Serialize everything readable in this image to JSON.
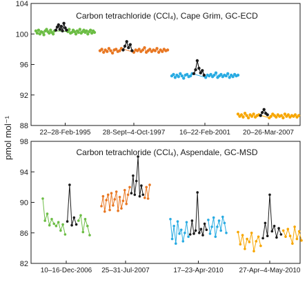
{
  "ylabel": "pmol mol⁻¹",
  "chart_data": [
    {
      "type": "scatter",
      "title": "Carbon tetrachloride (CCl₄), Cape Grim, GC-ECD",
      "ylim": [
        88,
        104
      ],
      "yticks": [
        "88",
        "92",
        "96",
        "100",
        "104"
      ],
      "groups": [
        {
          "label": "22–28-Feb-1995",
          "color": "#6cbd45",
          "event_color": "#1a1a1a",
          "background": [
            100.4,
            100.1,
            100.5,
            100.0,
            100.3,
            100.2,
            99.9,
            100.4,
            100.6,
            100.3,
            100.1,
            100.5,
            100.2,
            100.0,
            100.4,
            100.3,
            100.6,
            100.1,
            100.2,
            100.5,
            100.3,
            100.0,
            100.4,
            100.2,
            100.6,
            100.1,
            100.3,
            100.5,
            100.2,
            100.4,
            100.0,
            100.3,
            100.5,
            100.1,
            100.4,
            100.2
          ],
          "event": [
            100.5,
            100.9,
            101.2,
            100.6,
            101.0,
            100.4,
            101.4,
            100.8,
            100.5
          ]
        },
        {
          "label": "28-Sept–4-Oct-1997",
          "color": "#e87722",
          "event_color": "#1a1a1a",
          "background": [
            97.8,
            98.0,
            97.6,
            97.9,
            97.7,
            98.1,
            97.8,
            97.5,
            97.9,
            98.0,
            97.7,
            97.8,
            98.1,
            97.6,
            97.9,
            97.8,
            98.0,
            97.7,
            97.9,
            98.2,
            97.6,
            97.8,
            98.0,
            97.7,
            97.9,
            97.8,
            98.1,
            97.6,
            97.9,
            97.7,
            98.0,
            97.8,
            97.9
          ],
          "event": [
            97.9,
            98.4,
            99.0,
            98.2,
            98.6,
            97.8
          ]
        },
        {
          "label": "16–22-Feb-2001",
          "color": "#29abe2",
          "event_color": "#1a1a1a",
          "background": [
            94.5,
            94.7,
            94.3,
            94.6,
            94.4,
            94.8,
            94.5,
            94.2,
            94.6,
            94.7,
            94.4,
            94.5,
            94.8,
            94.3,
            94.6,
            94.5,
            94.7,
            94.4,
            94.6,
            94.9,
            94.3,
            94.5,
            94.7,
            94.4,
            94.6,
            94.5,
            94.8,
            94.3,
            94.6,
            94.4,
            94.7,
            94.5,
            94.6
          ],
          "event": [
            94.8,
            95.3,
            96.5,
            95.5,
            94.9,
            95.2,
            94.6
          ]
        },
        {
          "label": "20–26-Mar-2007",
          "color": "#f7a600",
          "event_color": "#1a1a1a",
          "background": [
            89.5,
            89.2,
            89.4,
            89.1,
            89.6,
            89.3,
            89.0,
            89.4,
            89.2,
            89.5,
            89.1,
            89.3,
            89.4,
            89.0,
            89.2,
            89.5,
            89.3,
            89.1,
            89.4,
            89.2,
            89.3,
            89.0,
            89.5,
            89.2,
            89.4,
            89.1,
            89.3,
            89.2,
            89.4,
            89.1,
            89.3
          ],
          "event": [
            89.3,
            89.7,
            90.1,
            89.6,
            89.4
          ]
        }
      ]
    },
    {
      "type": "line",
      "title": "Carbon tetrachloride (CCl₄), Aspendale, GC-MSD",
      "ylim": [
        82,
        98
      ],
      "yticks": [
        "82",
        "86",
        "90",
        "94",
        "98"
      ],
      "groups": [
        {
          "label": "10–16-Dec-2006",
          "color": "#6cbd45",
          "event_color": "#1a1a1a",
          "segments": [
            {
              "event": false,
              "values": [
                90.5,
                87.6,
                88.5,
                87.0,
                87.8,
                87.2,
                86.9,
                87.4,
                86.3,
                87.1,
                85.8
              ]
            },
            {
              "event": true,
              "values": [
                87.5,
                92.3,
                87.0,
                88.0,
                87.1
              ]
            },
            {
              "event": false,
              "values": [
                87.6,
                88.3,
                86.1,
                87.8,
                86.9,
                85.7
              ]
            }
          ]
        },
        {
          "label": "25–31-Jul-2007",
          "color": "#e87722",
          "event_color": "#1a1a1a",
          "segments": [
            {
              "event": false,
              "values": [
                89.5,
                90.8,
                88.8,
                90.3,
                91.0,
                89.0,
                91.2,
                89.6,
                90.4,
                91.4,
                88.9,
                90.7,
                89.2,
                90.2,
                91.6,
                89.8,
                91.0,
                92.0
              ]
            },
            {
              "event": true,
              "values": [
                91.2,
                93.5,
                91.0,
                92.8,
                96.0,
                90.8,
                92.2,
                91.0
              ]
            },
            {
              "event": false,
              "values": [
                90.6,
                92.0,
                90.5,
                92.3
              ]
            }
          ]
        },
        {
          "label": "17–23-Apr-2010",
          "color": "#29abe2",
          "event_color": "#1a1a1a",
          "segments": [
            {
              "event": false,
              "values": [
                87.8,
                85.2,
                86.9,
                84.6,
                87.5,
                85.9,
                86.4,
                84.9,
                86.0,
                87.4,
                85.5
              ]
            },
            {
              "event": true,
              "values": [
                85.8,
                87.6,
                85.9,
                86.3,
                91.3,
                86.0,
                86.5,
                85.7,
                87.2,
                86.4
              ]
            },
            {
              "event": false,
              "values": [
                87.7,
                85.9,
                86.8,
                88.0,
                85.5,
                86.8,
                87.6,
                86.3,
                88.1,
                87.3,
                86.0
              ]
            }
          ]
        },
        {
          "label": "27-Apr–4-May-2010",
          "color": "#f7a600",
          "event_color": "#1a1a1a",
          "segments": [
            {
              "event": false,
              "values": [
                86.1,
                84.5,
                85.7,
                83.9,
                85.2,
                84.8,
                86.0,
                83.6,
                84.9,
                85.5,
                84.3
              ]
            },
            {
              "event": true,
              "values": [
                85.3,
                87.3,
                85.6,
                91.0,
                86.2,
                86.9,
                85.4,
                86.6,
                85.8
              ]
            },
            {
              "event": false,
              "values": [
                86.3,
                85.5,
                86.5,
                85.6,
                84.6,
                86.8,
                85.2,
                86.2,
                85.0
              ]
            }
          ]
        }
      ]
    }
  ]
}
